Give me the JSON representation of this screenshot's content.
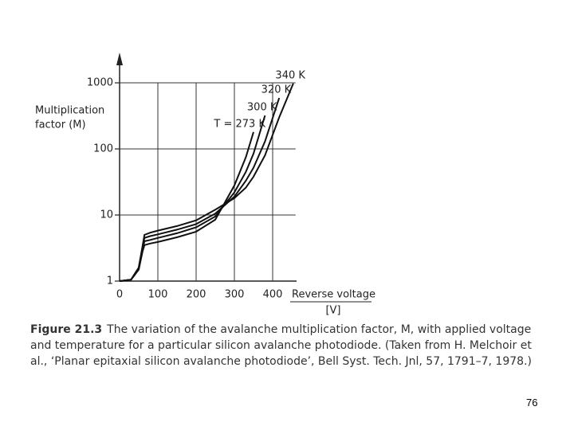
{
  "chart_data": {
    "type": "line",
    "ylabel": [
      "Multiplication",
      "factor (M)"
    ],
    "xlabel": "Reverse voltage",
    "xunit": "[V]",
    "x": [
      0,
      30,
      50,
      60,
      65,
      80,
      100,
      150,
      200,
      250,
      300,
      330,
      350,
      380,
      417,
      454
    ],
    "series": [
      {
        "name": "T = 273 K",
        "color": "#111111",
        "values": [
          1,
          1.05,
          1.5,
          2.8,
          3.5,
          3.7,
          3.9,
          4.6,
          5.6,
          8.5,
          28,
          75,
          180,
          null,
          null,
          null
        ]
      },
      {
        "name": "300 K",
        "color": "#111111",
        "values": [
          1,
          1.05,
          1.5,
          3,
          4,
          4.2,
          4.5,
          5.3,
          6.5,
          9.5,
          22,
          45,
          85,
          320,
          null,
          null
        ]
      },
      {
        "name": "320 K",
        "color": "#111111",
        "values": [
          1,
          1.05,
          1.6,
          3.2,
          4.5,
          4.8,
          5.1,
          6,
          7.3,
          10.5,
          19,
          33,
          52,
          130,
          590,
          null
        ]
      },
      {
        "name": "340 K",
        "color": "#111111",
        "values": [
          1,
          1.05,
          1.6,
          3.4,
          5,
          5.4,
          5.8,
          6.8,
          8.3,
          12,
          18,
          26,
          38,
          80,
          300,
          980
        ]
      }
    ],
    "xlim": [
      0,
      460
    ],
    "xticks": [
      0,
      100,
      200,
      300,
      400
    ],
    "ylim": [
      1,
      2500
    ],
    "yticks": [
      1,
      10,
      100,
      1000
    ],
    "ylog": true,
    "grid": true
  },
  "caption_label": "Figure 21.3",
  "caption_text": "The variation of the avalanche multiplication factor, M, with applied voltage and temperature for a particular silicon avalanche photodiode. (Taken from H. Melchoir et al., ‘Planar epitaxial silicon avalanche photodiode’, Bell Syst. Tech. Jnl, 57, 1791–7, 1978.)",
  "page_number": "76"
}
